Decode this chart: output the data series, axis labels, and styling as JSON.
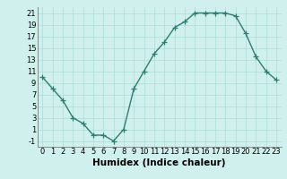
{
  "x": [
    0,
    1,
    2,
    3,
    4,
    5,
    6,
    7,
    8,
    9,
    10,
    11,
    12,
    13,
    14,
    15,
    16,
    17,
    18,
    19,
    20,
    21,
    22,
    23
  ],
  "y": [
    10,
    8,
    6,
    3,
    2,
    0,
    0,
    -1,
    1,
    8,
    11,
    14,
    16,
    18.5,
    19.5,
    21,
    21,
    21,
    21,
    20.5,
    17.5,
    13.5,
    11,
    9.5
  ],
  "line_color": "#2e7d6e",
  "marker": "+",
  "background_color": "#cff0ec",
  "grid_color": "#aaddd7",
  "xlabel": "Humidex (Indice chaleur)",
  "xlabel_fontsize": 7.5,
  "xlim": [
    -0.5,
    23.5
  ],
  "ylim": [
    -2,
    22
  ],
  "yticks": [
    -1,
    1,
    3,
    5,
    7,
    9,
    11,
    13,
    15,
    17,
    19,
    21
  ],
  "xticks": [
    0,
    1,
    2,
    3,
    4,
    5,
    6,
    7,
    8,
    9,
    10,
    11,
    12,
    13,
    14,
    15,
    16,
    17,
    18,
    19,
    20,
    21,
    22,
    23
  ],
  "tick_fontsize": 6,
  "linewidth": 1.0,
  "markersize": 4,
  "markeredgewidth": 0.9
}
